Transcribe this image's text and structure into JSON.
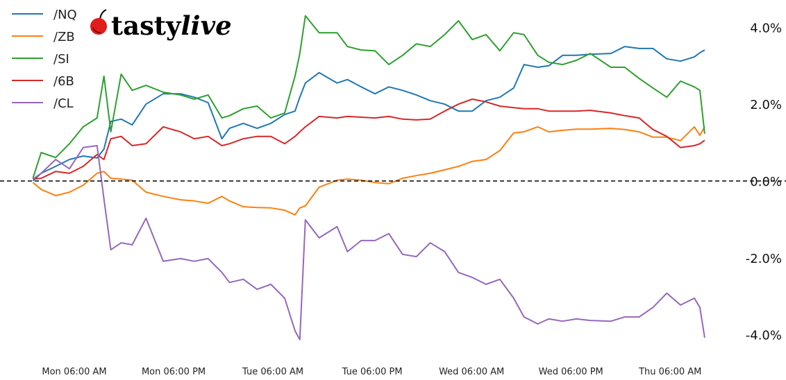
{
  "logo": {
    "text_plain": "tasty",
    "text_italic": "live",
    "cherry_color": "#e21b1b"
  },
  "chart_data": {
    "type": "line",
    "title": "",
    "xlabel": "",
    "ylabel": "",
    "y_unit": "%",
    "ylim": [
      -4.4,
      4.4
    ],
    "grid": false,
    "legend_position": "top-left",
    "zero_line": {
      "value": 0,
      "style": "dashed",
      "color": "#000000"
    },
    "x_ticks": [
      {
        "time": "Mon 06:00",
        "label": "Mon 06:00 AM"
      },
      {
        "time": "Mon 18:00",
        "label": "Mon 06:00 PM"
      },
      {
        "time": "Tue 06:00",
        "label": "Tue 06:00 AM"
      },
      {
        "time": "Tue 18:00",
        "label": "Tue 06:00 PM"
      },
      {
        "time": "Wed 06:00",
        "label": "Wed 06:00 AM"
      },
      {
        "time": "Wed 18:00",
        "label": "Wed 06:00 PM"
      },
      {
        "time": "Thu 06:00",
        "label": "Thu 06:00 AM"
      }
    ],
    "y_ticks": [
      {
        "value": 4,
        "label": "4.0%"
      },
      {
        "value": 2,
        "label": "2.0%"
      },
      {
        "value": 0,
        "label": "0.0%"
      },
      {
        "value": -2,
        "label": "-2.0%"
      },
      {
        "value": -4,
        "label": "-4.0%"
      }
    ],
    "x": [
      "Mon 01:00",
      "Mon 02:00",
      "Mon 03:45",
      "Mon 05:25",
      "Mon 07:05",
      "Mon 08:45",
      "Mon 09:35",
      "Mon 10:25",
      "Mon 11:40",
      "Mon 13:00",
      "Mon 14:40",
      "Mon 16:45",
      "Mon 18:50",
      "Mon 20:30",
      "Mon 22:10",
      "Mon 23:50",
      "Tue 00:45",
      "Tue 02:25",
      "Tue 04:05",
      "Tue 05:45",
      "Tue 07:25",
      "Tue 08:40",
      "Tue 09:15",
      "Tue 09:55",
      "Tue 11:35",
      "Tue 13:45",
      "Tue 15:00",
      "Tue 16:40",
      "Tue 18:20",
      "Tue 20:00",
      "Tue 21:40",
      "Tue 23:20",
      "Wed 01:00",
      "Wed 02:45",
      "Wed 04:25",
      "Wed 06:05",
      "Wed 07:45",
      "Wed 09:25",
      "Wed 11:05",
      "Wed 12:20",
      "Wed 14:00",
      "Wed 15:20",
      "Wed 17:00",
      "Wed 18:40",
      "Wed 20:20",
      "Wed 22:50",
      "Thu 00:30",
      "Thu 02:15",
      "Thu 03:55",
      "Thu 05:35",
      "Thu 07:15",
      "Thu 08:55",
      "Thu 09:35",
      "Thu 10:10"
    ],
    "series": [
      {
        "name": "/NQ",
        "color": "#1f77b4",
        "values": [
          0,
          0.2,
          0.38,
          0.56,
          0.65,
          0.6,
          0.83,
          1.55,
          1.61,
          1.46,
          2.0,
          2.27,
          2.27,
          2.18,
          2.04,
          1.1,
          1.37,
          1.5,
          1.37,
          1.5,
          1.73,
          1.82,
          2.18,
          2.55,
          2.82,
          2.55,
          2.64,
          2.45,
          2.27,
          2.45,
          2.36,
          2.24,
          2.09,
          2.0,
          1.82,
          1.82,
          2.09,
          2.18,
          2.42,
          3.03,
          2.96,
          3.0,
          3.27,
          3.27,
          3.3,
          3.32,
          3.5,
          3.45,
          3.45,
          3.18,
          3.12,
          3.23,
          3.34,
          3.41
        ]
      },
      {
        "name": "/ZB",
        "color": "#ff7f0e",
        "values": [
          -0.04,
          -0.22,
          -0.38,
          -0.29,
          -0.11,
          0.2,
          0.25,
          0.07,
          0.05,
          0.02,
          -0.29,
          -0.4,
          -0.49,
          -0.52,
          -0.58,
          -0.4,
          -0.52,
          -0.67,
          -0.69,
          -0.7,
          -0.76,
          -0.88,
          -0.7,
          -0.65,
          -0.16,
          0.02,
          0.05,
          0.02,
          -0.04,
          -0.07,
          0.07,
          0.14,
          0.2,
          0.29,
          0.38,
          0.51,
          0.56,
          0.79,
          1.25,
          1.28,
          1.41,
          1.28,
          1.32,
          1.35,
          1.35,
          1.37,
          1.34,
          1.28,
          1.14,
          1.14,
          1.05,
          1.41,
          1.19,
          1.41
        ]
      },
      {
        "name": "/SI",
        "color": "#2ca02c",
        "values": [
          0.07,
          0.74,
          0.61,
          0.97,
          1.41,
          1.64,
          2.73,
          1.28,
          2.78,
          2.36,
          2.49,
          2.31,
          2.24,
          2.13,
          2.24,
          1.64,
          1.7,
          1.88,
          1.95,
          1.64,
          1.77,
          2.73,
          3.32,
          4.3,
          3.86,
          3.86,
          3.5,
          3.41,
          3.39,
          3.03,
          3.27,
          3.57,
          3.5,
          3.81,
          4.17,
          3.68,
          3.81,
          3.39,
          3.86,
          3.81,
          3.27,
          3.09,
          3.03,
          3.14,
          3.32,
          2.96,
          2.96,
          2.67,
          2.42,
          2.18,
          2.6,
          2.45,
          2.36,
          1.23
        ]
      },
      {
        "name": "/6B",
        "color": "#d62728",
        "values": [
          0.05,
          0.07,
          0.25,
          0.2,
          0.38,
          0.69,
          0.56,
          1.1,
          1.16,
          0.92,
          0.97,
          1.41,
          1.28,
          1.1,
          1.16,
          0.92,
          0.97,
          1.1,
          1.16,
          1.16,
          0.97,
          1.16,
          1.28,
          1.41,
          1.68,
          1.64,
          1.68,
          1.66,
          1.64,
          1.68,
          1.61,
          1.59,
          1.61,
          1.82,
          2.0,
          2.13,
          2.06,
          1.95,
          1.91,
          1.88,
          1.88,
          1.82,
          1.82,
          1.82,
          1.84,
          1.77,
          1.7,
          1.64,
          1.34,
          1.16,
          0.87,
          0.92,
          0.97,
          1.06
        ]
      },
      {
        "name": "/CL",
        "color": "#9467bd",
        "values": [
          0.05,
          0.2,
          0.56,
          0.32,
          0.87,
          0.92,
          -0.47,
          -1.79,
          -1.61,
          -1.66,
          -0.97,
          -2.09,
          -2.02,
          -2.09,
          -2.02,
          -2.38,
          -2.64,
          -2.56,
          -2.82,
          -2.69,
          -3.05,
          -3.9,
          -4.13,
          -1.01,
          -1.48,
          -1.19,
          -1.84,
          -1.55,
          -1.55,
          -1.37,
          -1.91,
          -1.97,
          -1.61,
          -1.84,
          -2.38,
          -2.51,
          -2.69,
          -2.56,
          -3.05,
          -3.54,
          -3.72,
          -3.59,
          -3.65,
          -3.59,
          -3.63,
          -3.65,
          -3.54,
          -3.54,
          -3.29,
          -2.92,
          -3.23,
          -3.05,
          -3.29,
          -4.08
        ]
      }
    ]
  }
}
